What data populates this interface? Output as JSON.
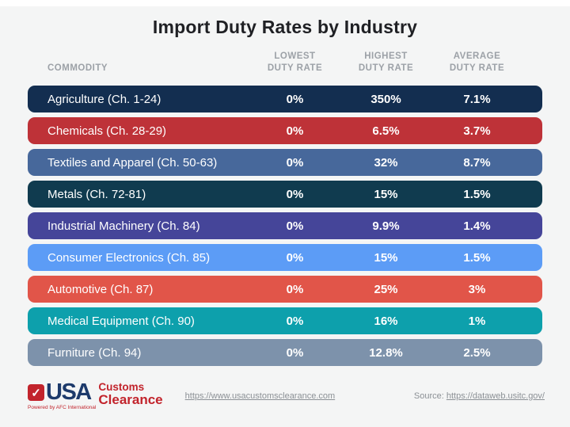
{
  "title": "Import Duty Rates by Industry",
  "table": {
    "headers": {
      "commodity": "COMMODITY",
      "cols": [
        {
          "line1": "LOWEST",
          "line2": "DUTY RATE"
        },
        {
          "line1": "HIGHEST",
          "line2": "DUTY RATE"
        },
        {
          "line1": "AVERAGE",
          "line2": "DUTY RATE"
        }
      ]
    },
    "rows": [
      {
        "commodity": "Agriculture (Ch. 1-24)",
        "lowest": "0%",
        "highest": "350%",
        "average": "7.1%",
        "color": "#132e50"
      },
      {
        "commodity": "Chemicals (Ch. 28-29)",
        "lowest": "0%",
        "highest": "6.5%",
        "average": "3.7%",
        "color": "#be3238"
      },
      {
        "commodity": "Textiles and Apparel (Ch. 50-63)",
        "lowest": "0%",
        "highest": "32%",
        "average": "8.7%",
        "color": "#47689b"
      },
      {
        "commodity": "Metals (Ch. 72-81)",
        "lowest": "0%",
        "highest": "15%",
        "average": "1.5%",
        "color": "#103b4f"
      },
      {
        "commodity": "Industrial Machinery (Ch. 84)",
        "lowest": "0%",
        "highest": "9.9%",
        "average": "1.4%",
        "color": "#454599"
      },
      {
        "commodity": "Consumer Electronics (Ch. 85)",
        "lowest": "0%",
        "highest": "15%",
        "average": "1.5%",
        "color": "#5c9cf6"
      },
      {
        "commodity": "Automotive (Ch. 87)",
        "lowest": "0%",
        "highest": "25%",
        "average": "3%",
        "color": "#e15549"
      },
      {
        "commodity": "Medical Equipment (Ch. 90)",
        "lowest": "0%",
        "highest": "16%",
        "average": "1%",
        "color": "#0da0ac"
      },
      {
        "commodity": "Furniture (Ch. 94)",
        "lowest": "0%",
        "highest": "12.8%",
        "average": "2.5%",
        "color": "#7d92ab"
      }
    ]
  },
  "footer": {
    "logo": {
      "check": "✓",
      "usa": "USA",
      "customs": "Customs",
      "clearance": "Clearance",
      "powered": "Powered by AFC International"
    },
    "site_url": "https://www.usacustomsclearance.com",
    "source_label": "Source:",
    "source_url": "https://dataweb.usitc.gov/"
  },
  "colors": {
    "background": "#f4f5f5",
    "title_text": "#1f2024",
    "header_text": "#9ca1a7",
    "row_text": "#ffffff",
    "logo_navy": "#1d3a6b",
    "logo_red": "#c2242c",
    "link_gray": "#8b9095"
  },
  "chart_data": {
    "type": "table",
    "title": "Import Duty Rates by Industry",
    "columns": [
      "Commodity",
      "Lowest Duty Rate (%)",
      "Highest Duty Rate (%)",
      "Average Duty Rate (%)"
    ],
    "rows": [
      [
        "Agriculture (Ch. 1-24)",
        0,
        350,
        7.1
      ],
      [
        "Chemicals (Ch. 28-29)",
        0,
        6.5,
        3.7
      ],
      [
        "Textiles and Apparel (Ch. 50-63)",
        0,
        32,
        8.7
      ],
      [
        "Metals (Ch. 72-81)",
        0,
        15,
        1.5
      ],
      [
        "Industrial Machinery (Ch. 84)",
        0,
        9.9,
        1.4
      ],
      [
        "Consumer Electronics (Ch. 85)",
        0,
        15,
        1.5
      ],
      [
        "Automotive (Ch. 87)",
        0,
        25,
        3
      ],
      [
        "Medical Equipment (Ch. 90)",
        0,
        16,
        1
      ],
      [
        "Furniture (Ch. 94)",
        0,
        12.8,
        2.5
      ]
    ],
    "legend_position": "none",
    "grid": false
  }
}
